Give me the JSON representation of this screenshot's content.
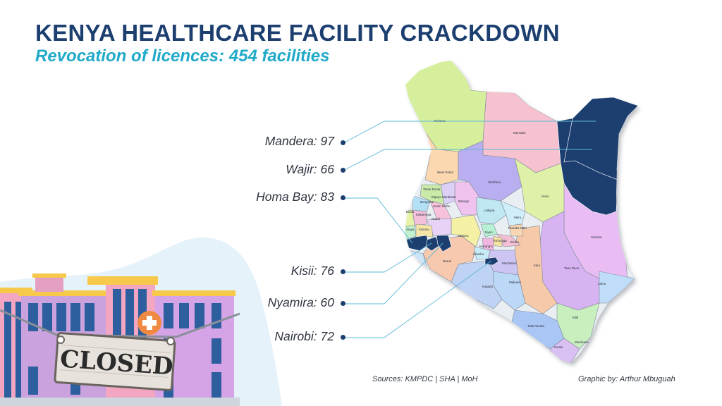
{
  "title": "KENYA HEALTHCARE FACILITY CRACKDOWN",
  "subtitle": "Revocation of licences: 454 facilities",
  "highlighted_counties": [
    {
      "label": "Mandera: 97",
      "county": "Mandera",
      "count": 97
    },
    {
      "label": "Wajir: 66",
      "county": "Wajir",
      "count": 66
    },
    {
      "label": "Homa Bay: 83",
      "county": "Homa Bay",
      "count": 83
    },
    {
      "label": "Kisii: 76",
      "county": "Kisii",
      "count": 76
    },
    {
      "label": "Nyamira: 60",
      "county": "Nyamira",
      "count": 60
    },
    {
      "label": "Nairobi: 72",
      "county": "Nairobi",
      "count": 72
    }
  ],
  "map_county_labels": [
    "Turkana",
    "Marsabit",
    "West Pokot",
    "Samburu",
    "Trans Nzoia",
    "Elgeyo Marakwet",
    "Baringo",
    "Bungoma",
    "Uasin Gishu",
    "Kakamega",
    "Nandi",
    "Busia",
    "Siaya",
    "Kisumu",
    "Laikipia",
    "Isiolo",
    "Meru",
    "Nakuru",
    "Nyeri",
    "Tharaka Nithi",
    "Kirinyaga",
    "Embu",
    "Murang'a",
    "Kiambu",
    "Narok",
    "Kajiado",
    "Machakos",
    "Makueni",
    "Kitui",
    "Tana River",
    "Garissa",
    "Lamu",
    "Taita Taveta",
    "Kilifi",
    "Kwale",
    "Mombasa"
  ],
  "sign_text": "CLOSED",
  "footer": {
    "sources": "Sources: KMPDC | SHA | MoH",
    "credit": "Graphic by: Arthur Mbuguah"
  },
  "colors": {
    "title": "#1c3f70",
    "subtitle": "#21a9c9",
    "highlight": "#1c3f70",
    "leader_line": "#5bb8d8"
  }
}
